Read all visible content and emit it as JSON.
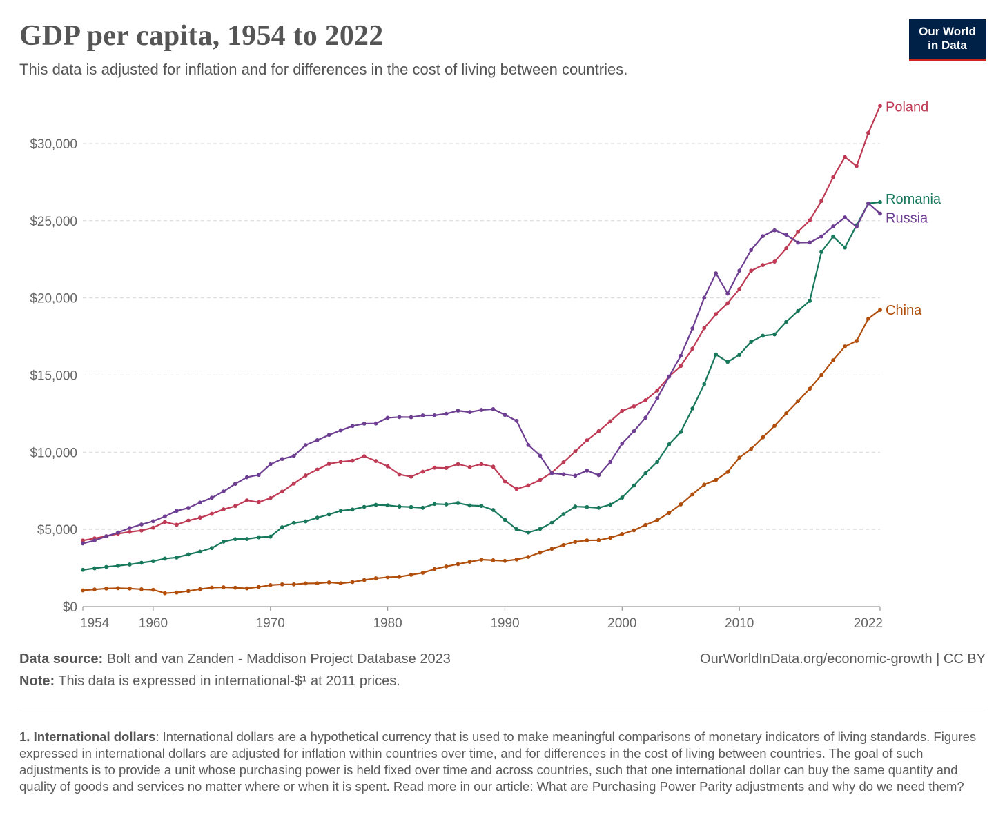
{
  "header": {
    "title": "GDP per capita, 1954 to 2022",
    "subtitle": "This data is adjusted for inflation and for differences in the cost of living between countries."
  },
  "logo": {
    "line1": "Our World",
    "line2": "in Data",
    "bg_color": "#002147",
    "accent_color": "#ce261e"
  },
  "chart_data": {
    "type": "line",
    "title": "GDP per capita, 1954 to 2022",
    "xlabel": "",
    "ylabel": "",
    "xlim": [
      1954,
      2022
    ],
    "ylim": [
      0,
      32500
    ],
    "x_ticks": [
      1954,
      1960,
      1970,
      1980,
      1990,
      2000,
      2010,
      2022
    ],
    "y_ticks": [
      0,
      5000,
      10000,
      15000,
      20000,
      25000,
      30000
    ],
    "y_tick_labels": [
      "$0",
      "$5,000",
      "$10,000",
      "$15,000",
      "$20,000",
      "$25,000",
      "$30,000"
    ],
    "grid": "horizontal-dashed",
    "legend": "direct-labels-right",
    "x": [
      1954,
      1955,
      1956,
      1957,
      1958,
      1959,
      1960,
      1961,
      1962,
      1963,
      1964,
      1965,
      1966,
      1967,
      1968,
      1969,
      1970,
      1971,
      1972,
      1973,
      1974,
      1975,
      1976,
      1977,
      1978,
      1979,
      1980,
      1981,
      1982,
      1983,
      1984,
      1985,
      1986,
      1987,
      1988,
      1989,
      1990,
      1991,
      1992,
      1993,
      1994,
      1995,
      1996,
      1997,
      1998,
      1999,
      2000,
      2001,
      2002,
      2003,
      2004,
      2005,
      2006,
      2007,
      2008,
      2009,
      2010,
      2011,
      2012,
      2013,
      2014,
      2015,
      2016,
      2017,
      2018,
      2019,
      2020,
      2021,
      2022
    ],
    "series": [
      {
        "name": "Poland",
        "color": "#be3a55",
        "values": [
          4280,
          4420,
          4560,
          4720,
          4840,
          4930,
          5110,
          5480,
          5300,
          5570,
          5760,
          6010,
          6300,
          6510,
          6880,
          6760,
          7030,
          7450,
          7970,
          8490,
          8880,
          9250,
          9380,
          9450,
          9740,
          9430,
          9090,
          8560,
          8420,
          8740,
          9000,
          8980,
          9230,
          9040,
          9230,
          9060,
          8110,
          7620,
          7850,
          8200,
          8680,
          9350,
          10050,
          10770,
          11360,
          12010,
          12680,
          12970,
          13370,
          14000,
          14900,
          15590,
          16710,
          18040,
          18950,
          19650,
          20570,
          21760,
          22120,
          22350,
          23210,
          24280,
          25020,
          26280,
          27820,
          29120,
          28540,
          30680,
          32440
        ]
      },
      {
        "name": "Romania",
        "color": "#18785b",
        "values": [
          2380,
          2480,
          2570,
          2650,
          2730,
          2840,
          2940,
          3110,
          3180,
          3380,
          3560,
          3790,
          4210,
          4370,
          4380,
          4490,
          4530,
          5140,
          5420,
          5520,
          5760,
          5970,
          6210,
          6290,
          6460,
          6590,
          6560,
          6480,
          6450,
          6400,
          6650,
          6620,
          6710,
          6550,
          6520,
          6260,
          5620,
          5010,
          4800,
          5030,
          5430,
          5990,
          6480,
          6450,
          6400,
          6600,
          7060,
          7840,
          8640,
          9380,
          10510,
          11310,
          12830,
          14410,
          16330,
          15850,
          16310,
          17160,
          17550,
          17630,
          18450,
          19150,
          19800,
          22980,
          23970,
          23260,
          24710,
          26120,
          26200
        ]
      },
      {
        "name": "Russia",
        "color": "#6d3e91",
        "values": [
          4090,
          4280,
          4550,
          4800,
          5090,
          5320,
          5530,
          5840,
          6200,
          6390,
          6740,
          7050,
          7460,
          7950,
          8380,
          8530,
          9220,
          9560,
          9760,
          10460,
          10780,
          11120,
          11420,
          11700,
          11850,
          11860,
          12230,
          12280,
          12270,
          12380,
          12390,
          12490,
          12690,
          12600,
          12740,
          12790,
          12420,
          12030,
          10470,
          9780,
          8640,
          8570,
          8480,
          8810,
          8520,
          9380,
          10560,
          11360,
          12240,
          13500,
          14900,
          16250,
          18020,
          20010,
          21590,
          20270,
          21760,
          23100,
          24000,
          24380,
          24080,
          23580,
          23590,
          23980,
          24630,
          25210,
          24610,
          26120,
          25460
        ]
      },
      {
        "name": "China",
        "color": "#b14e0b",
        "values": [
          1050,
          1110,
          1170,
          1190,
          1170,
          1120,
          1090,
          870,
          910,
          1010,
          1130,
          1230,
          1250,
          1220,
          1180,
          1270,
          1390,
          1440,
          1440,
          1500,
          1510,
          1570,
          1510,
          1590,
          1720,
          1830,
          1900,
          1930,
          2060,
          2190,
          2430,
          2600,
          2750,
          2900,
          3040,
          3000,
          2960,
          3050,
          3220,
          3500,
          3740,
          3990,
          4200,
          4290,
          4300,
          4460,
          4700,
          4940,
          5290,
          5600,
          6070,
          6620,
          7270,
          7900,
          8200,
          8720,
          9650,
          10210,
          10960,
          11710,
          12520,
          13310,
          14110,
          15000,
          15960,
          16850,
          17210,
          18650,
          19220
        ]
      }
    ]
  },
  "labels": {
    "poland": "Poland",
    "romania": "Romania",
    "russia": "Russia",
    "china": "China"
  },
  "footer": {
    "source_label": "Data source:",
    "source_text": "Bolt and van Zanden - Maddison Project Database 2023",
    "note_label": "Note:",
    "note_text": "This data is expressed in international-$¹ at 2011 prices.",
    "url": "OurWorldInData.org/economic-growth | CC BY"
  },
  "footnote": {
    "label": "1. International dollars",
    "text": ": International dollars are a hypothetical currency that is used to make meaningful comparisons of monetary indicators of living standards. Figures expressed in international dollars are adjusted for inflation within countries over time, and for differences in the cost of living between countries. The goal of such adjustments is to provide a unit whose purchasing power is held fixed over time and across countries, such that one international dollar can buy the same quantity and quality of goods and services no matter where or when it is spent. Read more in our article: What are Purchasing Power Parity adjustments and why do we need them?"
  }
}
